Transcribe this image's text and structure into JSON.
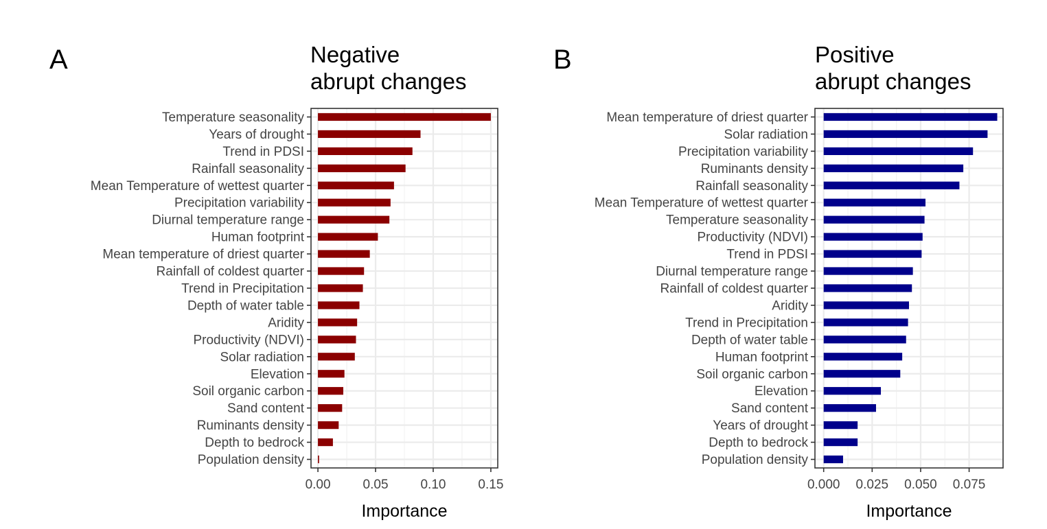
{
  "chart_data": [
    {
      "type": "bar",
      "orientation": "horizontal",
      "panel_label": "A",
      "title_lines": [
        "Negative",
        "abrupt changes"
      ],
      "xlabel": "Importance",
      "ylabel": "",
      "xlim": [
        -0.006,
        0.156
      ],
      "ticks": [
        0.0,
        0.05,
        0.1,
        0.15
      ],
      "tick_labels": [
        "0.00",
        "0.05",
        "0.10",
        "0.15"
      ],
      "color": "#8b0000",
      "grid": true,
      "categories": [
        "Temperature seasonality",
        "Years of drought",
        "Trend in PDSI",
        "Rainfall seasonality",
        "Mean Temperature of wettest quarter",
        "Precipitation variability",
        "Diurnal temperature range",
        "Human footprint",
        "Mean temperature of driest quarter",
        "Rainfall of coldest quarter",
        "Trend in Precipitation",
        "Depth of water table",
        "Aridity",
        "Productivity (NDVI)",
        "Solar radiation",
        "Elevation",
        "Soil organic carbon",
        "Sand content",
        "Ruminants density",
        "Depth to bedrock",
        "Population density"
      ],
      "values": [
        0.15,
        0.089,
        0.082,
        0.076,
        0.066,
        0.063,
        0.062,
        0.052,
        0.045,
        0.04,
        0.039,
        0.036,
        0.034,
        0.033,
        0.032,
        0.023,
        0.022,
        0.021,
        0.018,
        0.013,
        0.001
      ]
    },
    {
      "type": "bar",
      "orientation": "horizontal",
      "panel_label": "B",
      "title_lines": [
        "Positive",
        "abrupt changes"
      ],
      "xlabel": "Importance",
      "ylabel": "",
      "xlim": [
        -0.0045,
        0.0925
      ],
      "ticks": [
        0.0,
        0.025,
        0.05,
        0.075
      ],
      "tick_labels": [
        "0.000",
        "0.025",
        "0.050",
        "0.075"
      ],
      "color": "#00008b",
      "grid": true,
      "categories": [
        "Mean temperature of driest quarter",
        "Solar radiation",
        "Precipitation variability",
        "Ruminants density",
        "Rainfall seasonality",
        "Mean Temperature of wettest quarter",
        "Temperature seasonality",
        "Productivity (NDVI)",
        "Trend in PDSI",
        "Diurnal temperature range",
        "Rainfall of coldest quarter",
        "Aridity",
        "Trend in Precipitation",
        "Depth of water table",
        "Human footprint",
        "Soil organic carbon",
        "Elevation",
        "Sand content",
        "Years of drought",
        "Depth to bedrock",
        "Population density"
      ],
      "values": [
        0.0895,
        0.0845,
        0.077,
        0.072,
        0.07,
        0.0525,
        0.052,
        0.051,
        0.0505,
        0.046,
        0.0455,
        0.044,
        0.0435,
        0.0425,
        0.0405,
        0.0395,
        0.0295,
        0.027,
        0.0175,
        0.0175,
        0.01
      ]
    }
  ]
}
